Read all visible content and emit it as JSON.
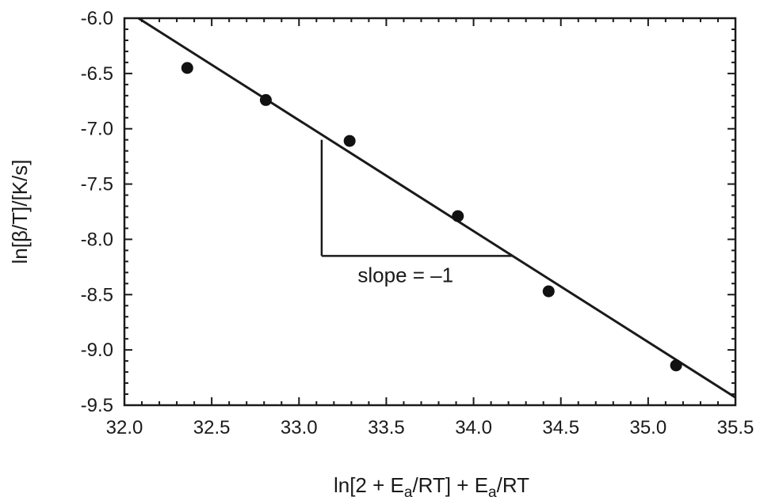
{
  "chart_data": {
    "type": "scatter",
    "title": "",
    "xlabel": {
      "parts": [
        {
          "t": "ln[2 + E",
          "sub": false
        },
        {
          "t": "a",
          "sub": true
        },
        {
          "t": "/RT] + E",
          "sub": false
        },
        {
          "t": "a",
          "sub": true
        },
        {
          "t": "/RT",
          "sub": false
        }
      ]
    },
    "ylabel": "ln[β/T]/[K/s]",
    "xlim": [
      32.0,
      35.5
    ],
    "ylim": [
      -9.5,
      -6.0
    ],
    "xticks": [
      "32.0",
      "32.5",
      "33.0",
      "33.5",
      "34.0",
      "34.5",
      "35.0",
      "35.5"
    ],
    "yticks": [
      "-6.0",
      "-6.5",
      "-7.0",
      "-7.5",
      "-8.0",
      "-8.5",
      "-9.0",
      "-9.5"
    ],
    "grid": false,
    "points": [
      {
        "x": 32.36,
        "y": -6.45
      },
      {
        "x": 32.81,
        "y": -6.74
      },
      {
        "x": 33.29,
        "y": -7.11
      },
      {
        "x": 33.91,
        "y": -7.79
      },
      {
        "x": 34.43,
        "y": -8.47
      },
      {
        "x": 35.16,
        "y": -9.14
      }
    ],
    "fit_line": {
      "x": [
        32.08,
        35.5
      ],
      "y": [
        -6.0,
        -9.43
      ],
      "slope": -1
    },
    "slope_triangle": {
      "x1": 33.13,
      "x2": 34.22,
      "y_top": -7.1,
      "y_bottom": -8.15
    },
    "annotation": {
      "text": "slope = –1",
      "x": 33.4,
      "y": -8.4
    }
  }
}
